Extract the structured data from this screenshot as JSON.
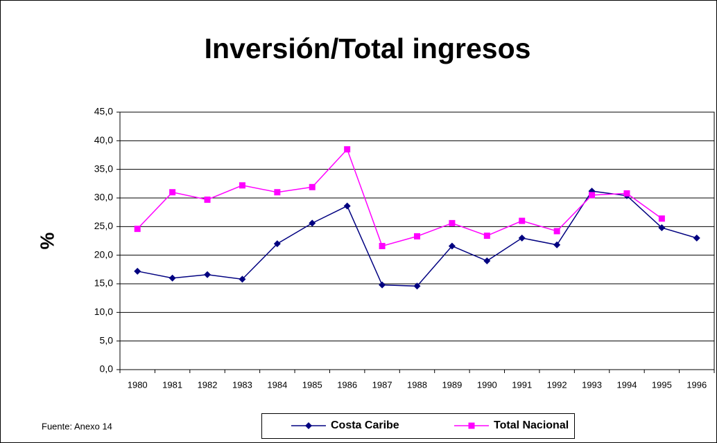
{
  "chart_data": {
    "type": "line",
    "title": "Inversión/Total ingresos",
    "y_label": "%",
    "source": "Fuente: Anexo 14",
    "categories": [
      "1980",
      "1981",
      "1982",
      "1983",
      "1984",
      "1985",
      "1986",
      "1987",
      "1988",
      "1989",
      "1990",
      "1991",
      "1992",
      "1993",
      "1994",
      "1995",
      "1996"
    ],
    "series": [
      {
        "name": "Costa Caribe",
        "color": "#000080",
        "marker": "diamond",
        "values": [
          17.2,
          16.0,
          16.6,
          15.8,
          22.0,
          25.6,
          28.6,
          14.8,
          14.6,
          21.6,
          19.0,
          23.0,
          21.8,
          31.2,
          30.4,
          24.8,
          23.0
        ]
      },
      {
        "name": "Total Nacional",
        "color": "#ff00ff",
        "marker": "square",
        "values": [
          24.6,
          31.0,
          29.7,
          32.2,
          31.0,
          31.9,
          38.5,
          21.6,
          23.3,
          25.6,
          23.4,
          26.0,
          24.2,
          30.5,
          30.8,
          26.4,
          null
        ]
      }
    ],
    "ylim": [
      0,
      45
    ],
    "yticks": [
      {
        "value": 0,
        "label": "0,0"
      },
      {
        "value": 5,
        "label": "5,0"
      },
      {
        "value": 10,
        "label": "10,0"
      },
      {
        "value": 15,
        "label": "15,0"
      },
      {
        "value": 20,
        "label": "20,0"
      },
      {
        "value": 25,
        "label": "25,0"
      },
      {
        "value": 30,
        "label": "30,0"
      },
      {
        "value": 35,
        "label": "35,0"
      },
      {
        "value": 40,
        "label": "40,0"
      },
      {
        "value": 45,
        "label": "45,0"
      }
    ],
    "grid": true,
    "legend": "bottom"
  }
}
